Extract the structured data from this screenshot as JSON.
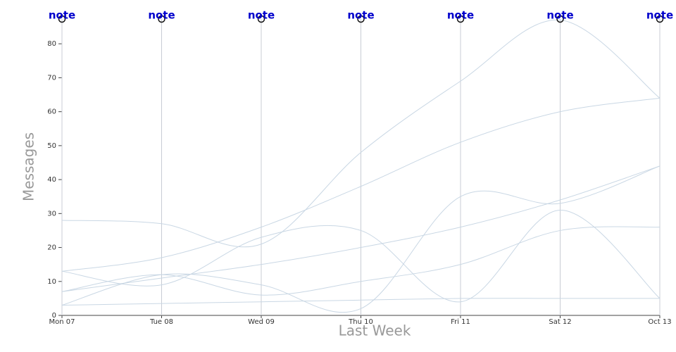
{
  "chart_data": {
    "type": "line",
    "x_label": "Last Week",
    "y_label": "Messages",
    "categories": [
      "Mon 07",
      "Tue 08",
      "Wed 09",
      "Thu 10",
      "Fri 11",
      "Sat 12",
      "Oct 13"
    ],
    "annotations": [
      "note",
      "note",
      "note",
      "note",
      "note",
      "note",
      "note"
    ],
    "color": "#c9d7e4",
    "series": [
      {
        "values": [
          28,
          27,
          21,
          48,
          69,
          87,
          64
        ]
      },
      {
        "values": [
          13,
          17,
          26,
          38,
          51,
          60,
          64
        ]
      },
      {
        "values": [
          7,
          11,
          15,
          20,
          26,
          34,
          44
        ]
      },
      {
        "values": [
          13,
          9,
          23,
          25,
          4,
          31,
          5
        ]
      },
      {
        "values": [
          3,
          12,
          9,
          2,
          35,
          33,
          44
        ]
      },
      {
        "values": [
          7,
          12,
          6,
          10,
          15,
          25,
          26
        ]
      },
      {
        "values": [
          3,
          3.5,
          4,
          4.5,
          5,
          5,
          5
        ]
      }
    ],
    "ylim": [
      0,
      87.3
    ],
    "yticks": [
      0,
      10,
      20,
      30,
      40,
      50,
      60,
      70,
      80
    ],
    "xgrid": true
  }
}
